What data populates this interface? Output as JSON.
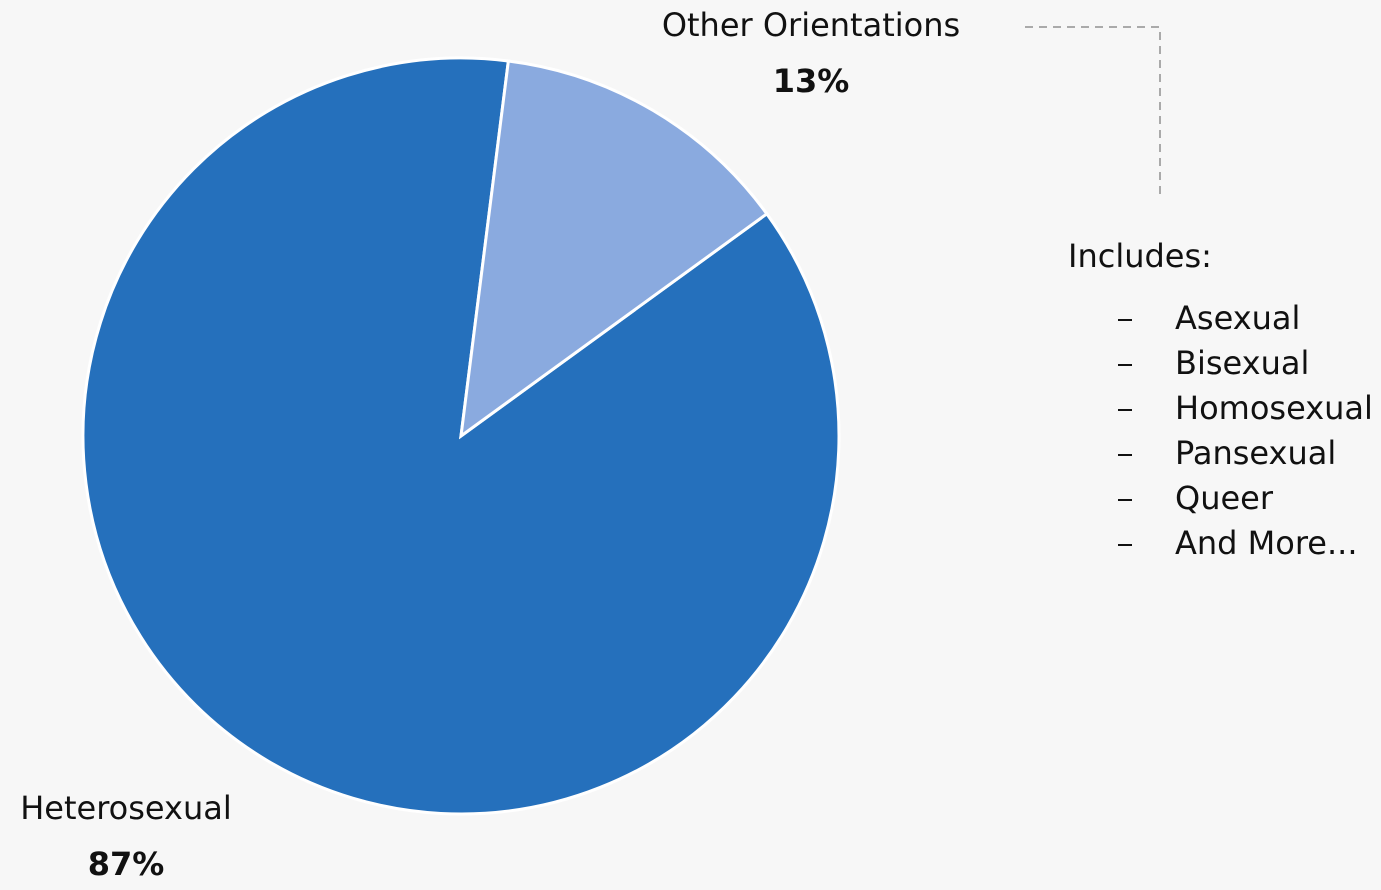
{
  "chart_data": {
    "type": "pie",
    "categories": [
      "Heterosexual",
      "Other Orientations"
    ],
    "values": [
      87,
      13
    ],
    "value_labels": [
      "87%",
      "13%"
    ],
    "colors": [
      "#2570bc",
      "#8aaadf"
    ],
    "annotation": {
      "title": "Includes:",
      "items": [
        "Asexual",
        "Bisexual",
        "Homosexual",
        "Pansexual",
        "Queer",
        "And More..."
      ]
    }
  }
}
